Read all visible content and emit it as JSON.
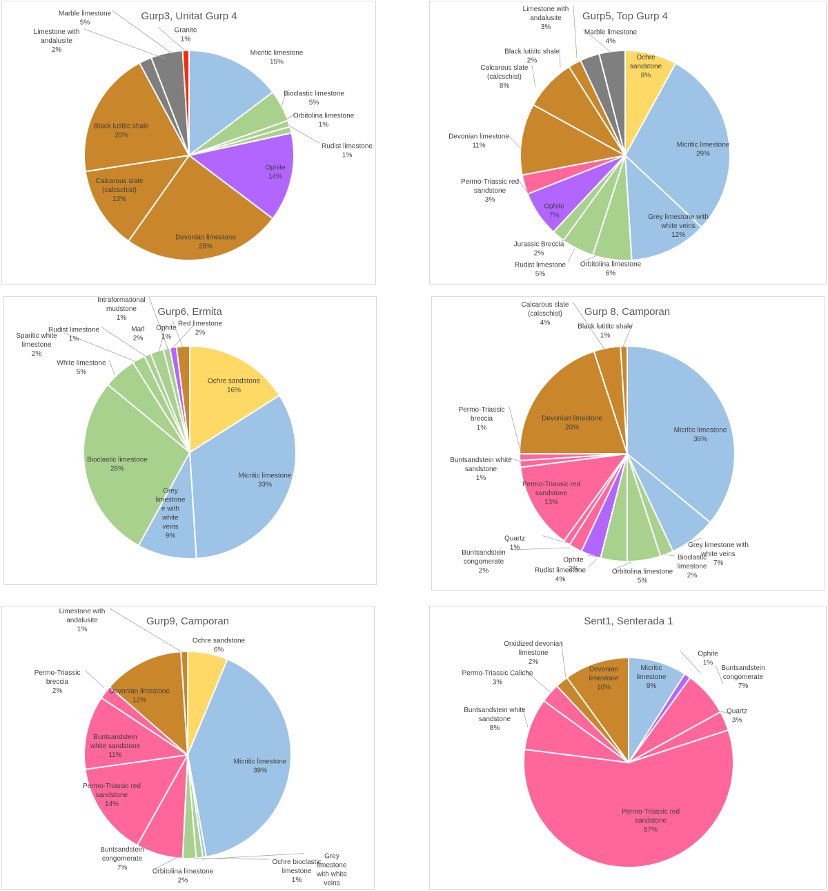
{
  "colors": {
    "micritic": "#9dc3e6",
    "bioclastic": "#a9d18e",
    "ophite": "#b266ff",
    "brown": "#c9862b",
    "grey": "#7f7f7f",
    "granite": "#ff2a00",
    "ochre": "#ffd966",
    "pink": "#ff6699"
  },
  "chart_data": [
    {
      "type": "pie",
      "title": "Gurp3, Unitat Gurp 4",
      "slices": [
        {
          "name": [
            "Micritic limestone"
          ],
          "value": 15,
          "label": "15%",
          "color": "#9dc3e6"
        },
        {
          "name": [
            "Bioclastic limestone"
          ],
          "value": 5,
          "label": "5%",
          "color": "#a9d18e"
        },
        {
          "name": [
            "Orbitolina limestone"
          ],
          "value": 1,
          "label": "1%",
          "color": "#a9d18e"
        },
        {
          "name": [
            "Rudist limestone"
          ],
          "value": 1,
          "label": "1%",
          "color": "#a9d18e"
        },
        {
          "name": [
            "Ophite"
          ],
          "value": 14,
          "label": "14%",
          "color": "#b266ff"
        },
        {
          "name": [
            "Devonian limestone"
          ],
          "value": 25,
          "label": "25%",
          "color": "#c9862b"
        },
        {
          "name": [
            "Calcarous slate",
            "(calcschist)"
          ],
          "value": 13,
          "label": "13%",
          "color": "#c9862b"
        },
        {
          "name": [
            "Black lutititc shale"
          ],
          "value": 20,
          "label": "20%",
          "color": "#c9862b"
        },
        {
          "name": [
            "Limestone with",
            "andalusite"
          ],
          "value": 2,
          "label": "2%",
          "color": "#7f7f7f"
        },
        {
          "name": [
            "Marble limestone"
          ],
          "value": 5,
          "label": "5%",
          "color": "#7f7f7f"
        },
        {
          "name": [
            "Granite"
          ],
          "value": 1,
          "label": "1%",
          "color": "#ff2a00"
        }
      ]
    },
    {
      "type": "pie",
      "title": "Gurp5, Top Gurp 4",
      "slices": [
        {
          "name": [
            "Ochre",
            "sandstone"
          ],
          "value": 8,
          "label": "8%",
          "color": "#ffd966"
        },
        {
          "name": [
            "Micritic limestone"
          ],
          "value": 29,
          "label": "29%",
          "color": "#9dc3e6"
        },
        {
          "name": [
            "Grey limestone with",
            "white veins"
          ],
          "value": 12,
          "label": "12%",
          "color": "#9dc3e6"
        },
        {
          "name": [
            "Orbitolina limestone"
          ],
          "value": 6,
          "label": "6%",
          "color": "#a9d18e"
        },
        {
          "name": [
            "Rudist limestone"
          ],
          "value": 5,
          "label": "5%",
          "color": "#a9d18e"
        },
        {
          "name": [
            "Jurassic Breccia"
          ],
          "value": 2,
          "label": "2%",
          "color": "#a9d18e"
        },
        {
          "name": [
            "Ophite"
          ],
          "value": 7,
          "label": "7%",
          "color": "#b266ff"
        },
        {
          "name": [
            "Permo-Triassic red",
            "sandstone"
          ],
          "value": 3,
          "label": "3%",
          "color": "#ff6699"
        },
        {
          "name": [
            "Devonian limestone"
          ],
          "value": 11,
          "label": "11%",
          "color": "#c9862b"
        },
        {
          "name": [
            "Calcarous slate",
            "(calcschist)"
          ],
          "value": 8,
          "label": "8%",
          "color": "#c9862b"
        },
        {
          "name": [
            "Black lutititc shale"
          ],
          "value": 2,
          "label": "2%",
          "color": "#c9862b"
        },
        {
          "name": [
            "Limestone with",
            "andalusite"
          ],
          "value": 3,
          "label": "3%",
          "color": "#7f7f7f"
        },
        {
          "name": [
            "Marble limestone"
          ],
          "value": 4,
          "label": "4%",
          "color": "#7f7f7f"
        }
      ]
    },
    {
      "type": "pie",
      "title": "Gurp6, Ermita",
      "slices": [
        {
          "name": [
            "Ochre sandstone"
          ],
          "value": 16,
          "label": "16%",
          "color": "#ffd966"
        },
        {
          "name": [
            "Micritic limestone"
          ],
          "value": 33,
          "label": "33%",
          "color": "#9dc3e6"
        },
        {
          "name": [
            "Grey",
            "limestone",
            "e with",
            "white",
            "veins"
          ],
          "value": 9,
          "label": "9%",
          "color": "#9dc3e6"
        },
        {
          "name": [
            "Bioclastic limestone"
          ],
          "value": 28,
          "label": "28%",
          "color": "#a9d18e"
        },
        {
          "name": [
            "White limestone"
          ],
          "value": 5,
          "label": "5%",
          "color": "#a9d18e"
        },
        {
          "name": [
            "Sparitic white",
            "limestone"
          ],
          "value": 2,
          "label": "2%",
          "color": "#a9d18e"
        },
        {
          "name": [
            "Rudist limestone"
          ],
          "value": 1,
          "label": "1%",
          "color": "#a9d18e"
        },
        {
          "name": [
            "Marl"
          ],
          "value": 2,
          "label": "2%",
          "color": "#a9d18e"
        },
        {
          "name": [
            "Intraformational",
            "mudstone"
          ],
          "value": 1,
          "label": "1%",
          "color": "#a9d18e"
        },
        {
          "name": [
            "Ophite"
          ],
          "value": 1,
          "label": "1%",
          "color": "#b266ff"
        },
        {
          "name": [
            "Red limestone"
          ],
          "value": 2,
          "label": "2%",
          "color": "#c9862b"
        }
      ]
    },
    {
      "type": "pie",
      "title": "Gurp 8, Camporan",
      "slices": [
        {
          "name": [
            "Micritic limestone"
          ],
          "value": 36,
          "label": "36%",
          "color": "#9dc3e6"
        },
        {
          "name": [
            "Grey limestone with",
            "white veins"
          ],
          "value": 7,
          "label": "7%",
          "color": "#9dc3e6"
        },
        {
          "name": [
            "Bioclastic",
            "limestone"
          ],
          "value": 2,
          "label": "2%",
          "color": "#a9d18e"
        },
        {
          "name": [
            "Orbitolina limestone"
          ],
          "value": 5,
          "label": "5%",
          "color": "#a9d18e"
        },
        {
          "name": [
            "Rudist limestone"
          ],
          "value": 4,
          "label": "4%",
          "color": "#a9d18e"
        },
        {
          "name": [
            "Ophite"
          ],
          "value": 3,
          "label": "3%",
          "color": "#b266ff"
        },
        {
          "name": [
            "Buntsandstein",
            "congomerate"
          ],
          "value": 2,
          "label": "2%",
          "color": "#ff6699"
        },
        {
          "name": [
            "Quartz"
          ],
          "value": 1,
          "label": "1%",
          "color": "#ff6699"
        },
        {
          "name": [
            "Permo-Triassic red",
            "sandstone"
          ],
          "value": 13,
          "label": "13%",
          "color": "#ff6699"
        },
        {
          "name": [
            "Buntsandstein white",
            "sandstone"
          ],
          "value": 1,
          "label": "1%",
          "color": "#ff6699"
        },
        {
          "name": [
            "Permo-Triassic",
            "breccia"
          ],
          "value": 1,
          "label": "1%",
          "color": "#ff6699"
        },
        {
          "name": [
            "Devonian limestone"
          ],
          "value": 20,
          "label": "20%",
          "color": "#c9862b"
        },
        {
          "name": [
            "Calcarous slate",
            "(calcschist)"
          ],
          "value": 4,
          "label": "4%",
          "color": "#c9862b"
        },
        {
          "name": [
            "Black lutititc shale"
          ],
          "value": 1,
          "label": "1%",
          "color": "#c9862b"
        }
      ]
    },
    {
      "type": "pie",
      "title": "Gurp9, Camporan",
      "slices": [
        {
          "name": [
            "Ochre sandstone"
          ],
          "value": 6,
          "label": "6%",
          "color": "#ffd966"
        },
        {
          "name": [
            "Micritic limestone"
          ],
          "value": 39,
          "label": "39%",
          "color": "#9dc3e6"
        },
        {
          "name": [
            "Grey",
            "limestone",
            "with white",
            "veins"
          ],
          "value": 0.5,
          "label": "",
          "color": "#9dc3e6"
        },
        {
          "name": [
            "Ochre bioclastic",
            "limestone"
          ],
          "value": 1,
          "label": "1%",
          "color": "#a9d18e"
        },
        {
          "name": [
            "Orbitolina limestone"
          ],
          "value": 2,
          "label": "2%",
          "color": "#a9d18e"
        },
        {
          "name": [
            "Buntsandstein",
            "congomerate"
          ],
          "value": 7,
          "label": "7%",
          "color": "#ff6699"
        },
        {
          "name": [
            "Permo-Triassic red",
            "sandstone"
          ],
          "value": 14,
          "label": "14%",
          "color": "#ff6699"
        },
        {
          "name": [
            "Buntsandstein",
            "white sandstone"
          ],
          "value": 11,
          "label": "11%",
          "color": "#ff6699"
        },
        {
          "name": [
            "Permo-Triassic",
            "breccia"
          ],
          "value": 2,
          "label": "2%",
          "color": "#ff6699"
        },
        {
          "name": [
            "Devonian limestone"
          ],
          "value": 12,
          "label": "12%",
          "color": "#c9862b"
        },
        {
          "name": [
            "Limestone with",
            "andalusite"
          ],
          "value": 1,
          "label": "1%",
          "color": "#c9862b"
        }
      ]
    },
    {
      "type": "pie",
      "title": "Sent1, Senterada 1",
      "slices": [
        {
          "name": [
            "Micritic",
            "limestone"
          ],
          "value": 9,
          "label": "9%",
          "color": "#9dc3e6"
        },
        {
          "name": [
            "Ophite"
          ],
          "value": 1,
          "label": "1%",
          "color": "#b266ff"
        },
        {
          "name": [
            "Buntsandstein",
            "congomerate"
          ],
          "value": 7,
          "label": "7%",
          "color": "#ff6699"
        },
        {
          "name": [
            "Quartz"
          ],
          "value": 3,
          "label": "3%",
          "color": "#ff6699"
        },
        {
          "name": [
            "Permo-Triassic red",
            "sandstone"
          ],
          "value": 57,
          "label": "57%",
          "color": "#ff6699"
        },
        {
          "name": [
            "Buntsandstein white",
            "sandstone"
          ],
          "value": 8,
          "label": "8%",
          "color": "#ff6699"
        },
        {
          "name": [
            "Permo-Triassic Caliche"
          ],
          "value": 3,
          "label": "3%",
          "color": "#ff6699"
        },
        {
          "name": [
            "Orxidized devonian",
            "limestone"
          ],
          "value": 2,
          "label": "2%",
          "color": "#c9862b"
        },
        {
          "name": [
            "Devonian",
            "limestone"
          ],
          "value": 10,
          "label": "10%",
          "color": "#c9862b"
        }
      ]
    }
  ]
}
